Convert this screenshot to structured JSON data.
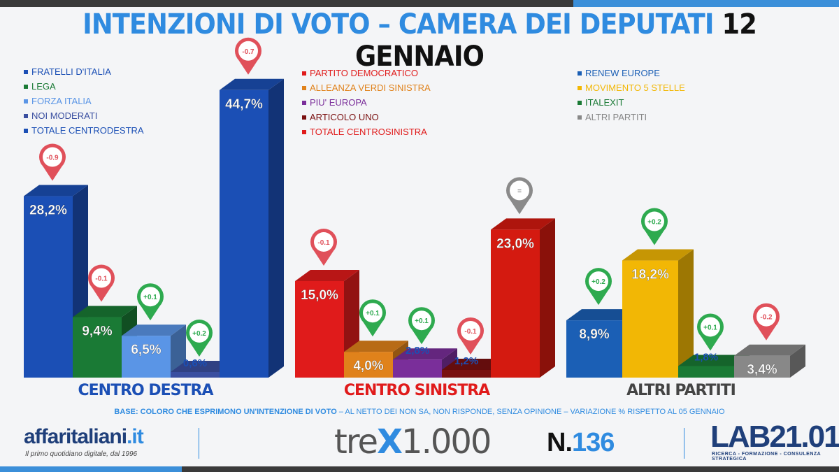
{
  "title": {
    "part1": "INTENZIONI DI VOTO – CAMERA DEI DEPUTATI",
    "part2": "12 GENNAIO"
  },
  "legends": [
    {
      "items": [
        {
          "label": "FRATELLI D'ITALIA",
          "color": "#1b4fb5"
        },
        {
          "label": "LEGA",
          "color": "#1a7a35"
        },
        {
          "label": "FORZA ITALIA",
          "color": "#5a95e6"
        },
        {
          "label": "NOI MODERATI",
          "color": "#3a4fa0"
        },
        {
          "label": "TOTALE CENTRODESTRA",
          "color": "#1b4fb5"
        }
      ]
    },
    {
      "items": [
        {
          "label": "PARTITO DEMOCRATICO",
          "color": "#e01b1b"
        },
        {
          "label": "ALLEANZA VERDI SINISTRA",
          "color": "#e0821b"
        },
        {
          "label": "PIU' EUROPA",
          "color": "#7a2e9a"
        },
        {
          "label": "ARTICOLO UNO",
          "color": "#7a1010"
        },
        {
          "label": "TOTALE CENTROSINISTRA",
          "color": "#e01b1b"
        }
      ]
    },
    {
      "items": [
        {
          "label": "RENEW EUROPE",
          "color": "#1b5fb5"
        },
        {
          "label": "MOVIMENTO 5 STELLE",
          "color": "#f2b705"
        },
        {
          "label": "ITALEXIT",
          "color": "#1a7a35"
        },
        {
          "label": "ALTRI PARTITI",
          "color": "#888888"
        }
      ]
    }
  ],
  "chart_data": {
    "type": "bar",
    "unit": "%",
    "groups": [
      {
        "name": "CENTRO DESTRA",
        "color": "#1b4fb5",
        "bars": [
          {
            "party": "FRATELLI D'ITALIA",
            "value": 28.2,
            "label": "28,2%",
            "change": "-0.9",
            "direction": "down",
            "color": "#1b4fb5"
          },
          {
            "party": "LEGA",
            "value": 9.4,
            "label": "9,4%",
            "change": "-0.1",
            "direction": "down",
            "color": "#1a7a35"
          },
          {
            "party": "FORZA ITALIA",
            "value": 6.5,
            "label": "6,5%",
            "change": "+0.1",
            "direction": "up",
            "color": "#5a95e6"
          },
          {
            "party": "NOI MODERATI",
            "value": 0.6,
            "label": "0,6%",
            "change": "+0.2",
            "direction": "up",
            "color": "#3a4fa0"
          },
          {
            "party": "TOTALE CENTRODESTRA",
            "value": 44.7,
            "label": "44,7%",
            "change": "-0.7",
            "direction": "down",
            "color": "#1b4fb5"
          }
        ]
      },
      {
        "name": "CENTRO SINISTRA",
        "color": "#e01b1b",
        "bars": [
          {
            "party": "PARTITO DEMOCRATICO",
            "value": 15.0,
            "label": "15,0%",
            "change": "-0.1",
            "direction": "down",
            "color": "#e01b1b"
          },
          {
            "party": "ALLEANZA VERDI SINISTRA",
            "value": 4.0,
            "label": "4,0%",
            "change": "+0.1",
            "direction": "up",
            "color": "#e0821b"
          },
          {
            "party": "PIU' EUROPA",
            "value": 2.8,
            "label": "2,8%",
            "change": "+0.1",
            "direction": "up",
            "color": "#7a2e9a"
          },
          {
            "party": "ARTICOLO UNO",
            "value": 1.2,
            "label": "1,2%",
            "change": "-0.1",
            "direction": "down",
            "color": "#7a1010"
          },
          {
            "party": "TOTALE CENTROSINISTRA",
            "value": 23.0,
            "label": "23,0%",
            "change": "=",
            "direction": "same",
            "color": "#d41a10"
          }
        ]
      },
      {
        "name": "ALTRI PARTITI",
        "color": "#444444",
        "bars": [
          {
            "party": "RENEW EUROPE",
            "value": 8.9,
            "label": "8,9%",
            "change": "+0.2",
            "direction": "up",
            "color": "#1b5fb5"
          },
          {
            "party": "MOVIMENTO 5 STELLE",
            "value": 18.2,
            "label": "18,2%",
            "change": "+0.2",
            "direction": "up",
            "color": "#f2b705"
          },
          {
            "party": "ITALEXIT",
            "value": 1.8,
            "label": "1,8%",
            "change": "+0.1",
            "direction": "up",
            "color": "#1a7a35"
          },
          {
            "party": "ALTRI PARTITI",
            "value": 3.4,
            "label": "3,4%",
            "change": "-0.2",
            "direction": "down",
            "color": "#888888"
          }
        ]
      }
    ],
    "marker_colors": {
      "up": "#2eaa4f",
      "down": "#e0505a",
      "same": "#8a8a8a"
    }
  },
  "footnote": {
    "bold": "BASE: COLORO CHE ESPRIMONO UN'INTENZIONE DI VOTO",
    "rest": " – AL NETTO DEI NON SA, NON RISPONDE, SENZA OPINIONE – VARIAZIONE % RISPETTO AL 05 GENNAIO"
  },
  "logos": {
    "affaritaliani": {
      "name": "affaritaliani",
      "tld": ".it",
      "tagline": "Il primo quotidiano digitale, dal 1996"
    },
    "trex": {
      "prefix": "tre",
      "x": "X",
      "suffix": "1.000"
    },
    "issue": {
      "prefix": "N.",
      "number": "136"
    },
    "lab": {
      "name": "LAB21.01",
      "tagline": "RICERCA - FORMAZIONE - CONSULENZA STRATEGICA"
    }
  }
}
